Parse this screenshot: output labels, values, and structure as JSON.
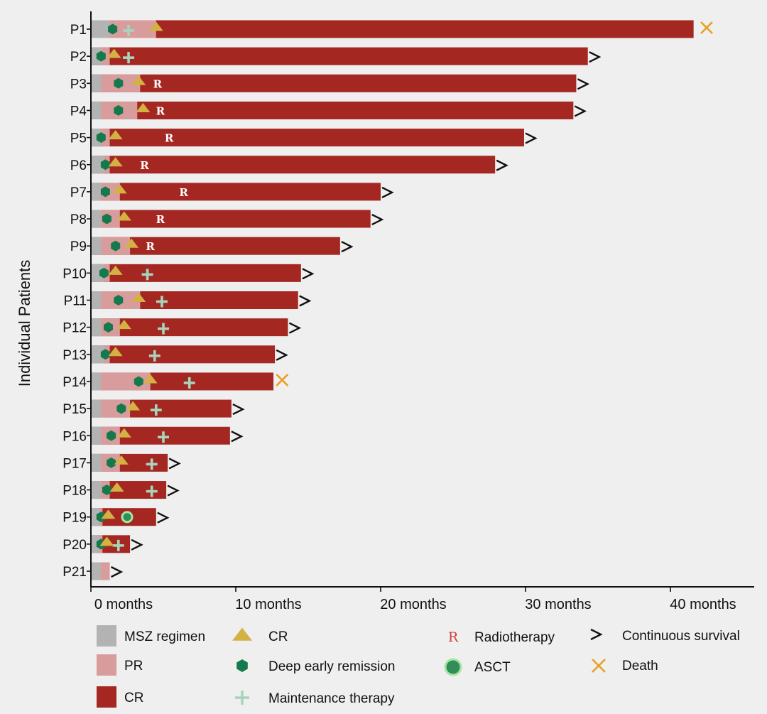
{
  "chart_data": {
    "type": "swimmer",
    "ylabel": "Individual Patients",
    "xlabel": "",
    "xlim": [
      0,
      46
    ],
    "xticks": [
      {
        "value": 0,
        "label": "0 months"
      },
      {
        "value": 10,
        "label": "10 months"
      },
      {
        "value": 20,
        "label": "20 months"
      },
      {
        "value": 30,
        "label": "30 months"
      },
      {
        "value": 40,
        "label": "40 months"
      }
    ],
    "colors": {
      "msz": "#b3b3b3",
      "pr": "#d99c9c",
      "cr": "#a42722",
      "cr_marker": "#d4b144",
      "deep": "#147a4d",
      "maint": "#a8d4bc",
      "asct_fill": "#2f8f56",
      "asct_ring": "#a8e3a8",
      "arrow": "#111111",
      "death": "#e8a020",
      "radio": "#ffffff"
    },
    "patients": [
      {
        "id": "P1",
        "msz": 1.3,
        "pr_end": 4.5,
        "end": 41.6,
        "cr": 4.4,
        "deep": 1.5,
        "maint": 2.6,
        "radio": null,
        "asct": null,
        "outcome": "death",
        "outcome_x": 42.5
      },
      {
        "id": "P2",
        "msz": 0.7,
        "pr_end": 1.3,
        "end": 34.3,
        "cr": 1.5,
        "deep": 0.7,
        "maint": 2.6,
        "radio": null,
        "asct": null,
        "outcome": "alive"
      },
      {
        "id": "P3",
        "msz": 0.7,
        "pr_end": 3.4,
        "end": 33.5,
        "cr": 3.2,
        "deep": 1.9,
        "maint": null,
        "radio": 4.6,
        "asct": null,
        "outcome": "alive"
      },
      {
        "id": "P4",
        "msz": 0.7,
        "pr_end": 3.2,
        "end": 33.3,
        "cr": 3.5,
        "deep": 1.9,
        "maint": null,
        "radio": 4.8,
        "asct": null,
        "outcome": "alive"
      },
      {
        "id": "P5",
        "msz": 0.7,
        "pr_end": 1.3,
        "end": 29.9,
        "cr": 1.6,
        "deep": 0.7,
        "maint": null,
        "radio": 5.4,
        "asct": null,
        "outcome": "alive"
      },
      {
        "id": "P6",
        "msz": 0.9,
        "pr_end": 1.3,
        "end": 27.9,
        "cr": 1.6,
        "deep": 1.0,
        "maint": null,
        "radio": 3.7,
        "asct": null,
        "outcome": "alive"
      },
      {
        "id": "P7",
        "msz": 0.7,
        "pr_end": 2.0,
        "end": 20.0,
        "cr": 1.9,
        "deep": 1.0,
        "maint": null,
        "radio": 6.4,
        "asct": null,
        "outcome": "alive"
      },
      {
        "id": "P8",
        "msz": 0.7,
        "pr_end": 2.0,
        "end": 19.3,
        "cr": 2.2,
        "deep": 1.1,
        "maint": null,
        "radio": 4.8,
        "asct": null,
        "outcome": "alive"
      },
      {
        "id": "P9",
        "msz": 0.7,
        "pr_end": 2.7,
        "end": 17.2,
        "cr": 2.7,
        "deep": 1.7,
        "maint": null,
        "radio": 4.1,
        "asct": null,
        "outcome": "alive"
      },
      {
        "id": "P10",
        "msz": 0.9,
        "pr_end": 1.3,
        "end": 14.5,
        "cr": 1.6,
        "deep": 0.9,
        "maint": 3.9,
        "radio": null,
        "asct": null,
        "outcome": "alive"
      },
      {
        "id": "P11",
        "msz": 0.7,
        "pr_end": 3.4,
        "end": 14.3,
        "cr": 3.2,
        "deep": 1.9,
        "maint": 4.9,
        "radio": null,
        "asct": null,
        "outcome": "alive"
      },
      {
        "id": "P12",
        "msz": 0.7,
        "pr_end": 2.0,
        "end": 13.6,
        "cr": 2.2,
        "deep": 1.2,
        "maint": 5.0,
        "radio": null,
        "asct": null,
        "outcome": "alive"
      },
      {
        "id": "P13",
        "msz": 0.9,
        "pr_end": 1.3,
        "end": 12.7,
        "cr": 1.6,
        "deep": 1.0,
        "maint": 4.4,
        "radio": null,
        "asct": null,
        "outcome": "alive"
      },
      {
        "id": "P14",
        "msz": 0.7,
        "pr_end": 4.1,
        "end": 12.6,
        "cr": 4.0,
        "deep": 3.3,
        "maint": 6.8,
        "radio": null,
        "asct": null,
        "outcome": "death",
        "outcome_x": 13.2
      },
      {
        "id": "P15",
        "msz": 0.7,
        "pr_end": 2.7,
        "end": 9.7,
        "cr": 2.8,
        "deep": 2.1,
        "maint": 4.5,
        "radio": null,
        "asct": null,
        "outcome": "alive"
      },
      {
        "id": "P16",
        "msz": 0.7,
        "pr_end": 2.0,
        "end": 9.6,
        "cr": 2.2,
        "deep": 1.4,
        "maint": 5.0,
        "radio": null,
        "asct": null,
        "outcome": "alive"
      },
      {
        "id": "P17",
        "msz": 0.7,
        "pr_end": 2.0,
        "end": 5.3,
        "cr": 2.0,
        "deep": 1.4,
        "maint": 4.2,
        "radio": null,
        "asct": null,
        "outcome": "alive"
      },
      {
        "id": "P18",
        "msz": 0.7,
        "pr_end": 1.3,
        "end": 5.2,
        "cr": 1.7,
        "deep": 1.1,
        "maint": 4.2,
        "radio": null,
        "asct": null,
        "outcome": "alive"
      },
      {
        "id": "P19",
        "msz": 0.6,
        "pr_end": 0.8,
        "end": 4.5,
        "cr": 1.1,
        "deep": 0.7,
        "maint": null,
        "radio": null,
        "asct": 2.5,
        "outcome": "alive"
      },
      {
        "id": "P20",
        "msz": 0.6,
        "pr_end": 0.8,
        "end": 2.7,
        "cr": 1.0,
        "deep": 0.7,
        "maint": 1.9,
        "radio": null,
        "asct": null,
        "outcome": "alive"
      },
      {
        "id": "P21",
        "msz": 0.7,
        "pr_end": 1.3,
        "end": 1.3,
        "cr": null,
        "deep": null,
        "maint": null,
        "radio": null,
        "asct": null,
        "outcome": "alive",
        "outcome_x": 1.4
      }
    ],
    "radio_letter": "R",
    "legend": [
      {
        "key": "msz",
        "label": "MSZ regimen"
      },
      {
        "key": "pr",
        "label": "PR"
      },
      {
        "key": "cr",
        "label": "CR"
      },
      {
        "key": "crm",
        "label": "CR"
      },
      {
        "key": "deep",
        "label": "Deep early remission"
      },
      {
        "key": "maint",
        "label": "Maintenance therapy"
      },
      {
        "key": "radio",
        "label": "Radiotherapy"
      },
      {
        "key": "asct",
        "label": "ASCT"
      },
      {
        "key": "arrow",
        "label": "Continuous survival"
      },
      {
        "key": "death",
        "label": "Death"
      }
    ]
  }
}
